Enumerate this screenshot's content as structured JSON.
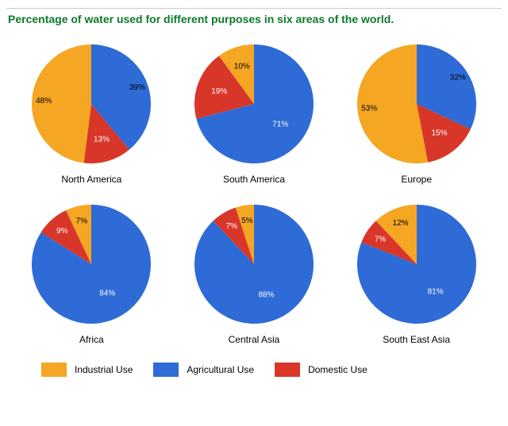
{
  "title": {
    "text": "Percentage of water used for different purposes in six areas of the world.",
    "color": "#0b7a2a",
    "fontsize": 14
  },
  "colors": {
    "industrial": "#f5a623",
    "agricultural": "#2e6bd6",
    "domestic": "#d9362a",
    "label_on_dark": "#ffffff",
    "label_on_light": "#000000",
    "background": "#ffffff"
  },
  "pie": {
    "radius": 75,
    "label_fontsize": 10,
    "caption_fontsize": 12
  },
  "charts": [
    {
      "name": "North America",
      "slices": [
        {
          "category": "agricultural",
          "value": 39,
          "label": "39%",
          "label_r": 0.82,
          "label_color": "label_on_light"
        },
        {
          "category": "domestic",
          "value": 13,
          "label": "13%",
          "label_r": 0.62,
          "label_color": "label_on_dark"
        },
        {
          "category": "industrial",
          "value": 48,
          "label": "48%",
          "label_r": 0.8,
          "label_color": "label_on_light"
        }
      ]
    },
    {
      "name": "South America",
      "slices": [
        {
          "category": "agricultural",
          "value": 71,
          "label": "71%",
          "label_r": 0.56,
          "label_color": "label_on_dark"
        },
        {
          "category": "domestic",
          "value": 19,
          "label": "19%",
          "label_r": 0.62,
          "label_color": "label_on_dark"
        },
        {
          "category": "industrial",
          "value": 10,
          "label": "10%",
          "label_r": 0.66,
          "label_color": "label_on_light"
        }
      ]
    },
    {
      "name": "Europe",
      "slices": [
        {
          "category": "agricultural",
          "value": 32,
          "label": "32%",
          "label_r": 0.82,
          "label_color": "label_on_light"
        },
        {
          "category": "domestic",
          "value": 15,
          "label": "15%",
          "label_r": 0.62,
          "label_color": "label_on_dark"
        },
        {
          "category": "industrial",
          "value": 53,
          "label": "53%",
          "label_r": 0.8,
          "label_color": "label_on_light"
        }
      ]
    },
    {
      "name": "Africa",
      "slices": [
        {
          "category": "agricultural",
          "value": 84,
          "label": "84%",
          "label_r": 0.56,
          "label_color": "label_on_dark"
        },
        {
          "category": "domestic",
          "value": 9,
          "label": "9%",
          "label_r": 0.74,
          "label_color": "label_on_dark"
        },
        {
          "category": "industrial",
          "value": 7,
          "label": "7%",
          "label_r": 0.74,
          "label_color": "label_on_light"
        }
      ]
    },
    {
      "name": "Central Asia",
      "slices": [
        {
          "category": "agricultural",
          "value": 88,
          "label": "88%",
          "label_r": 0.56,
          "label_color": "label_on_dark"
        },
        {
          "category": "domestic",
          "value": 7,
          "label": "7%",
          "label_r": 0.74,
          "label_color": "label_on_dark"
        },
        {
          "category": "industrial",
          "value": 5,
          "label": "5%",
          "label_r": 0.74,
          "label_color": "label_on_light"
        }
      ]
    },
    {
      "name": "South East Asia",
      "slices": [
        {
          "category": "agricultural",
          "value": 81,
          "label": "81%",
          "label_r": 0.56,
          "label_color": "label_on_dark"
        },
        {
          "category": "domestic",
          "value": 7,
          "label": "7%",
          "label_r": 0.74,
          "label_color": "label_on_dark"
        },
        {
          "category": "industrial",
          "value": 12,
          "label": "12%",
          "label_r": 0.74,
          "label_color": "label_on_light"
        }
      ]
    }
  ],
  "legend": [
    {
      "key": "industrial",
      "label": "Industrial Use"
    },
    {
      "key": "agricultural",
      "label": "Agricultural Use"
    },
    {
      "key": "domestic",
      "label": "Domestic Use"
    }
  ]
}
